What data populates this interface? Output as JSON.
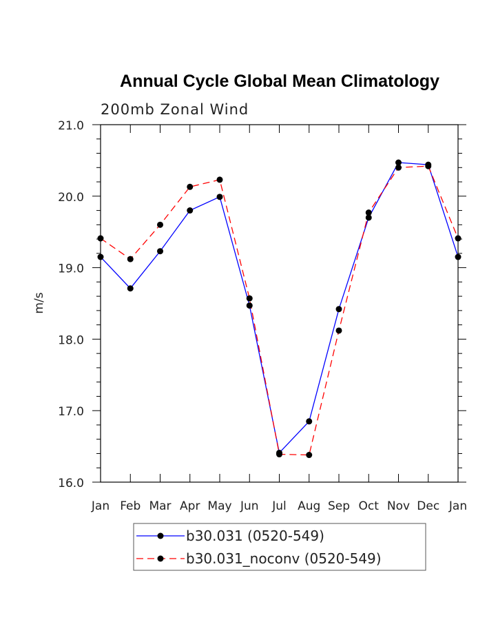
{
  "chart_data": {
    "type": "line",
    "title": "Annual Cycle Global Mean Climatology",
    "subtitle": "200mb Zonal Wind",
    "xlabel": "",
    "ylabel": "m/s",
    "categories": [
      "Jan",
      "Feb",
      "Mar",
      "Apr",
      "May",
      "Jun",
      "Jul",
      "Aug",
      "Sep",
      "Oct",
      "Nov",
      "Dec",
      "Jan"
    ],
    "ylim": [
      16.0,
      21.0
    ],
    "yticks": [
      "16.0",
      "17.0",
      "18.0",
      "19.0",
      "20.0",
      "21.0"
    ],
    "series": [
      {
        "name": "b30.031 (0520-549)",
        "color": "#0000ff",
        "dash": "solid",
        "values": [
          19.15,
          18.71,
          19.23,
          19.8,
          19.99,
          18.47,
          16.41,
          16.85,
          18.42,
          19.7,
          20.47,
          20.44,
          19.15
        ]
      },
      {
        "name": "b30.031_noconv (0520-549)",
        "color": "#ff0000",
        "dash": "dashed",
        "values": [
          19.41,
          19.12,
          19.6,
          20.13,
          20.23,
          18.57,
          16.39,
          16.38,
          18.12,
          19.77,
          20.4,
          20.42,
          19.41
        ]
      }
    ],
    "legend_position": "bottom-center"
  }
}
